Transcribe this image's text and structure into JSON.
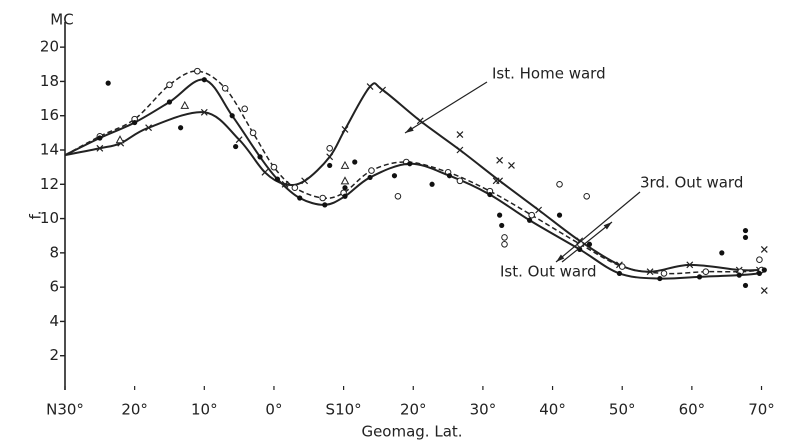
{
  "chart_data": {
    "type": "line",
    "y_unit": "MC",
    "y_label": "f.",
    "x_label": "Geomag. Lat.",
    "xlim": [
      -30,
      70.5
    ],
    "xticks": [
      {
        "value": -30,
        "label": "N30°"
      },
      {
        "value": -20,
        "label": "20°"
      },
      {
        "value": -10,
        "label": "10°"
      },
      {
        "value": 0,
        "label": "0°"
      },
      {
        "value": 10,
        "label": "S10°"
      },
      {
        "value": 20,
        "label": "20°"
      },
      {
        "value": 30,
        "label": "30°"
      },
      {
        "value": 40,
        "label": "40°"
      },
      {
        "value": 50,
        "label": "50°"
      },
      {
        "value": 60,
        "label": "60°"
      },
      {
        "value": 70,
        "label": "70°"
      }
    ],
    "ylim": [
      0,
      21
    ],
    "yticks": [
      2,
      4,
      6,
      8,
      10,
      12,
      14,
      16,
      18,
      20
    ],
    "series": [
      {
        "name": "Ist. Home ward",
        "color": "#222",
        "marker": "cross",
        "dashed": false,
        "x": [
          -30,
          -25,
          -22,
          -18,
          -10,
          -5,
          -1.3,
          1.6,
          4.4,
          8,
          10.2,
          13.8,
          15.6,
          21,
          26.7,
          32.4,
          38,
          43.9,
          49.6,
          54,
          59.7,
          66.8,
          69.7
        ],
        "values": [
          13.7,
          14.1,
          14.4,
          15.3,
          16.2,
          14.6,
          12.7,
          12.0,
          12.2,
          13.6,
          15.2,
          17.7,
          17.5,
          15.7,
          14.0,
          12.2,
          10.5,
          8.7,
          7.3,
          6.9,
          7.3,
          7.0,
          7.0
        ]
      },
      {
        "name": "3rd. Out ward",
        "color": "#222",
        "marker": "circle",
        "dashed": true,
        "x": [
          -30,
          -25,
          -20,
          -15,
          -11,
          -7,
          -3,
          0,
          3,
          7,
          10,
          14,
          19,
          25,
          31,
          37,
          44,
          50,
          56,
          62,
          67,
          70
        ],
        "values": [
          13.7,
          14.8,
          15.8,
          17.8,
          18.6,
          17.6,
          15.0,
          13.0,
          11.8,
          11.2,
          11.5,
          12.8,
          13.3,
          12.7,
          11.6,
          10.2,
          8.5,
          7.2,
          6.8,
          6.9,
          6.9,
          7.0
        ]
      },
      {
        "name": "Ist. Out ward",
        "color": "#222",
        "marker": "dot",
        "dashed": false,
        "x": [
          -30,
          -25,
          -20,
          -15,
          -10,
          -6,
          -2,
          0.5,
          3.7,
          7.3,
          10.2,
          13.8,
          19.5,
          25.2,
          31,
          36.7,
          43.9,
          49.6,
          55.4,
          61.1,
          66.8,
          69.7
        ],
        "values": [
          13.7,
          14.7,
          15.6,
          16.8,
          18.1,
          16.0,
          13.6,
          12.3,
          11.2,
          10.8,
          11.3,
          12.4,
          13.2,
          12.5,
          11.4,
          9.9,
          8.2,
          6.8,
          6.5,
          6.6,
          6.7,
          6.8
        ]
      }
    ],
    "scatter": [
      {
        "marker": "dot",
        "x": [
          -23.8,
          -13.4,
          -5.5,
          8,
          11.6,
          10.2,
          17.3,
          22.7,
          32.4,
          32.7,
          41,
          45.3,
          64.3,
          67.7,
          67.7,
          67.7,
          70.4
        ],
        "y": [
          17.9,
          15.3,
          14.2,
          13.1,
          13.3,
          11.8,
          12.5,
          12.0,
          10.2,
          9.6,
          10.2,
          8.5,
          8.0,
          9.3,
          8.9,
          6.1,
          7.0
        ]
      },
      {
        "marker": "circle",
        "x": [
          -4.2,
          8,
          17.8,
          26.7,
          33.1,
          33.1,
          41,
          44.9,
          69.7
        ],
        "y": [
          16.4,
          14.1,
          11.3,
          12.2,
          8.5,
          8.9,
          12.0,
          11.3,
          7.6
        ]
      },
      {
        "marker": "cross",
        "x": [
          32.4,
          34.1,
          31.9,
          26.7,
          70.4,
          70.4
        ],
        "y": [
          13.4,
          13.1,
          12.2,
          14.9,
          8.2,
          5.8
        ]
      },
      {
        "marker": "triangle",
        "x": [
          -12.8,
          10.2,
          10.2,
          -22.1
        ],
        "y": [
          16.6,
          13.1,
          12.2,
          14.6
        ]
      }
    ]
  }
}
